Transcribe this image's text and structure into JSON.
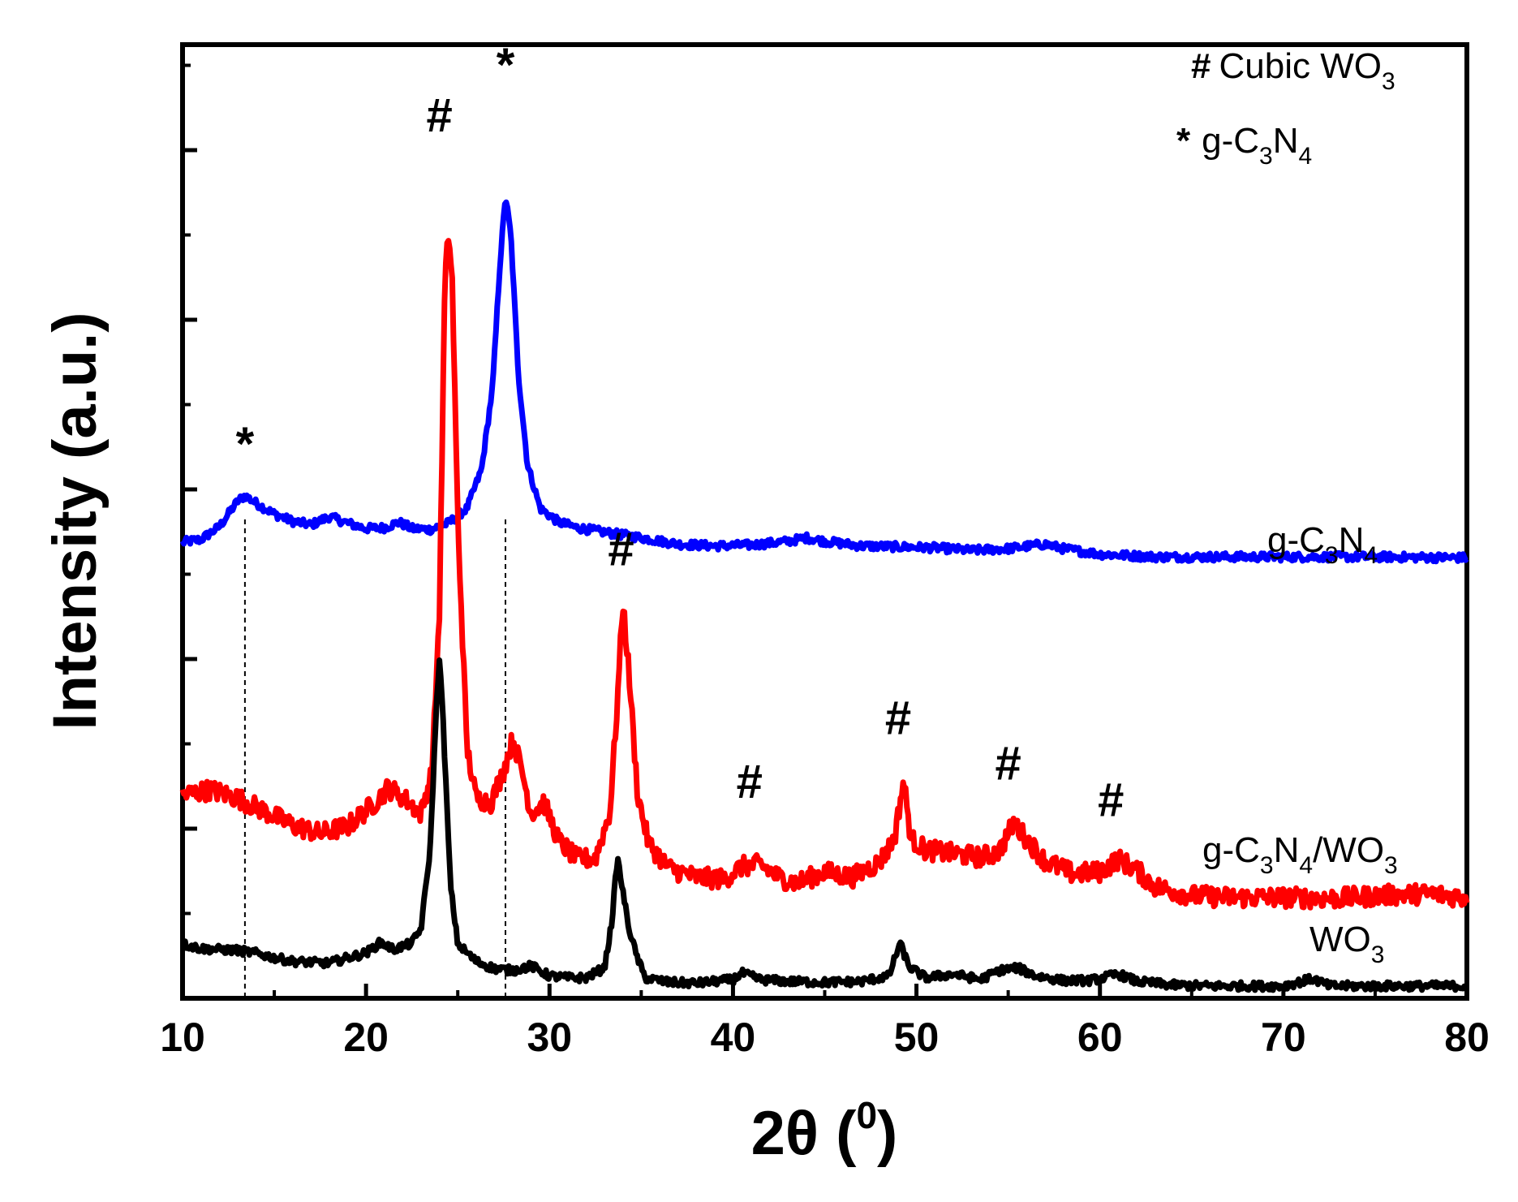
{
  "chart_data": {
    "type": "line",
    "title": "",
    "xlabel": "2θ (",
    "xlabel_sup": "0",
    "xlabel_end": ")",
    "ylabel": "Intensity (a.u.)",
    "xlim": [
      10,
      80
    ],
    "ylim": [
      0,
      100
    ],
    "x_ticks": [
      10,
      20,
      30,
      40,
      50,
      60,
      70,
      80
    ],
    "y_ticks_shown": false,
    "legend": [
      {
        "symbol": "#",
        "text": "Cubic WO",
        "sub": "3"
      },
      {
        "symbol": "*",
        "text": "g-C",
        "sub1": "3",
        "mid": "N",
        "sub2": "4"
      }
    ],
    "series": [
      {
        "name": "g-C3N4",
        "label_parts": {
          "a": "g-C",
          "s1": "3",
          "b": "N",
          "s2": "4"
        },
        "color": "#0000ff",
        "baseline": 49.5,
        "points": [
          [
            10,
            49.5
          ],
          [
            11,
            49.8
          ],
          [
            12,
            51.2
          ],
          [
            13,
            54.0
          ],
          [
            13.4,
            54.6
          ],
          [
            14,
            53.8
          ],
          [
            15,
            52.6
          ],
          [
            16,
            51.8
          ],
          [
            17,
            51.4
          ],
          [
            18,
            52.3
          ],
          [
            19,
            51.6
          ],
          [
            20,
            51.0
          ],
          [
            21,
            51.1
          ],
          [
            21.8,
            51.7
          ],
          [
            22.5,
            51.0
          ],
          [
            23.5,
            50.9
          ],
          [
            24.5,
            51.6
          ],
          [
            25.5,
            53.2
          ],
          [
            26.3,
            57.5
          ],
          [
            26.9,
            66.5
          ],
          [
            27.3,
            80.0
          ],
          [
            27.6,
            87.5
          ],
          [
            27.9,
            83.0
          ],
          [
            28.3,
            68.0
          ],
          [
            28.8,
            58.0
          ],
          [
            29.5,
            53.2
          ],
          [
            30.5,
            51.7
          ],
          [
            31.5,
            51.1
          ],
          [
            33,
            50.6
          ],
          [
            35,
            50.0
          ],
          [
            37,
            49.3
          ],
          [
            39,
            49.1
          ],
          [
            41,
            49.2
          ],
          [
            43,
            49.6
          ],
          [
            44,
            50.0
          ],
          [
            45,
            49.6
          ],
          [
            47,
            49.1
          ],
          [
            49,
            49.0
          ],
          [
            51,
            48.9
          ],
          [
            53,
            48.6
          ],
          [
            55,
            48.8
          ],
          [
            57,
            49.3
          ],
          [
            58,
            48.8
          ],
          [
            60,
            48.2
          ],
          [
            63,
            47.9
          ],
          [
            66,
            47.9
          ],
          [
            70,
            47.9
          ],
          [
            75,
            47.9
          ],
          [
            80,
            47.8
          ]
        ]
      },
      {
        "name": "g-C3N4/WO3",
        "label_parts": {
          "a": "g-C",
          "s1": "3",
          "b": "N",
          "s2": "4",
          "c": "/WO",
          "s3": "3"
        },
        "color": "#ff0000",
        "baseline": 14.5,
        "points": [
          [
            10,
            21.8
          ],
          [
            11.5,
            22.4
          ],
          [
            13,
            21.5
          ],
          [
            14.5,
            20.0
          ],
          [
            16,
            18.5
          ],
          [
            17.5,
            17.6
          ],
          [
            19,
            18.4
          ],
          [
            20.5,
            21.0
          ],
          [
            21.2,
            22.6
          ],
          [
            22,
            21.6
          ],
          [
            23,
            19.8
          ],
          [
            23.6,
            24.5
          ],
          [
            24.0,
            42.0
          ],
          [
            24.3,
            78.0
          ],
          [
            24.5,
            83.5
          ],
          [
            24.7,
            78.0
          ],
          [
            25.0,
            52.0
          ],
          [
            25.5,
            27.0
          ],
          [
            26.0,
            21.5
          ],
          [
            26.8,
            21.0
          ],
          [
            27.5,
            24.5
          ],
          [
            28.0,
            28.0
          ],
          [
            28.5,
            24.5
          ],
          [
            29.0,
            19.8
          ],
          [
            29.7,
            21.0
          ],
          [
            30.5,
            16.8
          ],
          [
            31.5,
            14.8
          ],
          [
            32.5,
            14.9
          ],
          [
            33.3,
            20.0
          ],
          [
            33.7,
            32.0
          ],
          [
            34.0,
            43.0
          ],
          [
            34.3,
            36.0
          ],
          [
            34.8,
            22.0
          ],
          [
            35.4,
            16.5
          ],
          [
            36.5,
            13.8
          ],
          [
            38,
            12.8
          ],
          [
            39.5,
            12.6
          ],
          [
            40.5,
            14.0
          ],
          [
            41.5,
            14.2
          ],
          [
            42.5,
            12.8
          ],
          [
            43.5,
            12.2
          ],
          [
            45,
            13.4
          ],
          [
            46.5,
            12.8
          ],
          [
            48,
            14.5
          ],
          [
            48.8,
            17.0
          ],
          [
            49.3,
            23.5
          ],
          [
            49.7,
            17.0
          ],
          [
            50.5,
            15.8
          ],
          [
            52,
            15.4
          ],
          [
            53.5,
            15.0
          ],
          [
            54.5,
            15.6
          ],
          [
            55.3,
            18.8
          ],
          [
            56,
            17.0
          ],
          [
            57,
            14.6
          ],
          [
            58.5,
            13.2
          ],
          [
            60,
            13.4
          ],
          [
            61,
            14.8
          ],
          [
            62,
            13.6
          ],
          [
            63,
            11.8
          ],
          [
            65,
            10.8
          ],
          [
            67,
            10.6
          ],
          [
            70,
            10.6
          ],
          [
            73,
            10.5
          ],
          [
            76,
            10.9
          ],
          [
            78,
            11.0
          ],
          [
            80,
            10.6
          ]
        ]
      },
      {
        "name": "WO3",
        "label_parts": {
          "a": "WO",
          "s1": "3"
        },
        "color": "#000000",
        "baseline": 1.0,
        "points": [
          [
            10,
            5.5
          ],
          [
            11,
            5.0
          ],
          [
            12,
            4.9
          ],
          [
            13,
            4.8
          ],
          [
            14,
            4.5
          ],
          [
            15,
            4.0
          ],
          [
            16,
            3.6
          ],
          [
            17,
            3.5
          ],
          [
            18,
            3.4
          ],
          [
            19,
            4.0
          ],
          [
            20,
            4.5
          ],
          [
            20.8,
            5.7
          ],
          [
            21.5,
            4.9
          ],
          [
            22.5,
            5.6
          ],
          [
            23.0,
            7.2
          ],
          [
            23.5,
            16.0
          ],
          [
            23.8,
            30.0
          ],
          [
            24.0,
            37.0
          ],
          [
            24.2,
            30.0
          ],
          [
            24.6,
            12.0
          ],
          [
            25.0,
            5.5
          ],
          [
            26,
            3.6
          ],
          [
            27,
            2.8
          ],
          [
            28,
            2.6
          ],
          [
            29,
            3.1
          ],
          [
            30,
            2.0
          ],
          [
            31,
            1.8
          ],
          [
            32,
            1.8
          ],
          [
            33,
            2.9
          ],
          [
            33.4,
            8.0
          ],
          [
            33.7,
            15.0
          ],
          [
            33.9,
            12.5
          ],
          [
            34.3,
            7.5
          ],
          [
            34.7,
            4.5
          ],
          [
            35.2,
            1.8
          ],
          [
            36.5,
            1.3
          ],
          [
            38,
            1.2
          ],
          [
            40,
            1.6
          ],
          [
            40.5,
            2.3
          ],
          [
            41.5,
            1.6
          ],
          [
            43,
            1.4
          ],
          [
            45,
            1.3
          ],
          [
            47,
            1.4
          ],
          [
            48.5,
            2.0
          ],
          [
            49.1,
            5.6
          ],
          [
            49.6,
            3.0
          ],
          [
            50.5,
            1.8
          ],
          [
            52,
            2.2
          ],
          [
            53.5,
            1.6
          ],
          [
            54.5,
            2.6
          ],
          [
            55.5,
            2.9
          ],
          [
            56.5,
            2.0
          ],
          [
            58,
            1.5
          ],
          [
            59.5,
            1.5
          ],
          [
            61,
            2.2
          ],
          [
            62,
            1.4
          ],
          [
            64,
            1.0
          ],
          [
            66,
            0.9
          ],
          [
            68,
            0.9
          ],
          [
            70,
            0.9
          ],
          [
            71.6,
            1.7
          ],
          [
            72.5,
            0.9
          ],
          [
            75,
            0.9
          ],
          [
            78,
            0.9
          ],
          [
            80,
            0.9
          ]
        ]
      }
    ],
    "reference_lines_x": [
      13.4,
      27.6
    ],
    "annotations": [
      {
        "text": "*",
        "x": 13.4,
        "y": 58.5
      },
      {
        "text": "#",
        "x": 24.0,
        "y": 94.5
      },
      {
        "text": "*",
        "x": 27.6,
        "y": 100.0
      },
      {
        "text": "#",
        "x": 33.9,
        "y": 47.0
      },
      {
        "text": "#",
        "x": 40.9,
        "y": 21.5
      },
      {
        "text": "#",
        "x": 49.0,
        "y": 28.5
      },
      {
        "text": "#",
        "x": 55.0,
        "y": 23.5
      },
      {
        "text": "#",
        "x": 60.6,
        "y": 19.5
      }
    ]
  }
}
